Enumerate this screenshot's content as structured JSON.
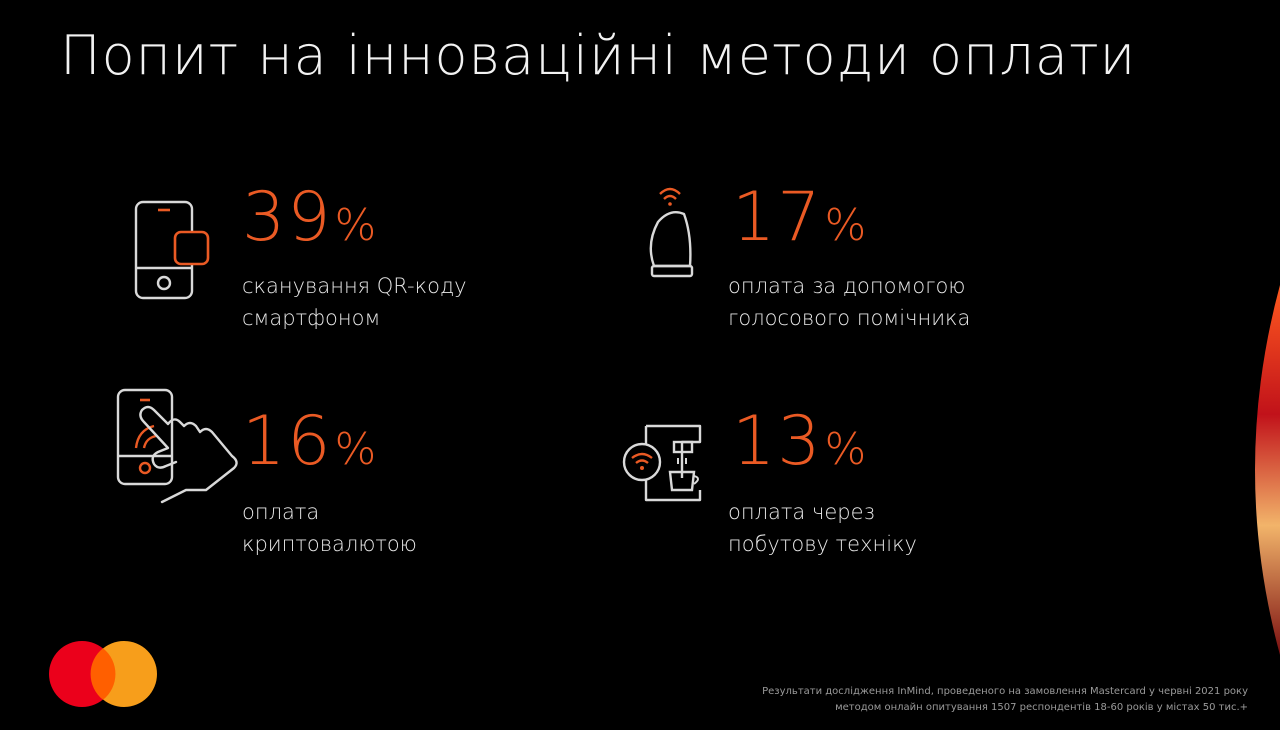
{
  "title": "Попит на інноваційні методи оплати",
  "accent_color": "#ea5a24",
  "stats": [
    {
      "icon": "smartphone-qr-icon",
      "value": "39",
      "unit": "%",
      "label_lines": [
        "сканування QR-коду",
        "смартфоном"
      ]
    },
    {
      "icon": "voice-assistant-speaker-icon",
      "value": "17",
      "unit": "%",
      "label_lines": [
        "оплата за допомогою",
        "голосового помічника"
      ]
    },
    {
      "icon": "hand-tap-phone-icon",
      "value": "16",
      "unit": "%",
      "label_lines": [
        "оплата",
        "криптовалютою"
      ]
    },
    {
      "icon": "coffee-machine-wifi-icon",
      "value": "13",
      "unit": "%",
      "label_lines": [
        "оплата через",
        "побутову техніку"
      ]
    }
  ],
  "footnote": {
    "line1": "Результати дослідження InMind, проведеного на замовлення Mastercard у червні 2021 року",
    "line2": "методом онлайн опитування 1507 респондентів 18-60 років у містах 50 тис.+"
  },
  "logo": {
    "icon": "mastercard-logo-icon",
    "colors": [
      "#eb001b",
      "#f79e1b",
      "#ff5f00"
    ]
  }
}
